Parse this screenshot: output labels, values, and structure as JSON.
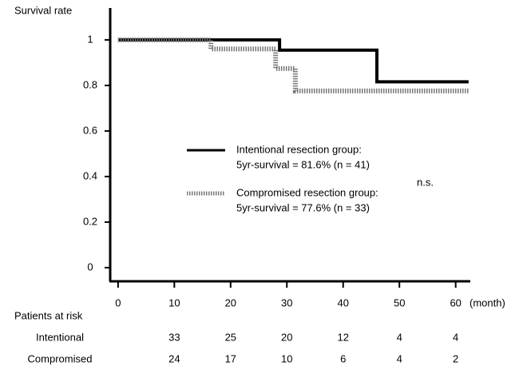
{
  "chart_data": {
    "type": "step",
    "y_label": "Survival rate",
    "x_unit": "(month)",
    "xlim": [
      -1.4,
      62.6
    ],
    "xticks": [
      0,
      10,
      20,
      30,
      40,
      50,
      60
    ],
    "ylim": [
      -0.06,
      1.14
    ],
    "yticks": [
      0,
      0.2,
      0.4,
      0.6,
      0.8,
      1
    ],
    "series": [
      {
        "name": "Intentional resection group:",
        "note": "5yr-survival = 81.6% (n = 41)",
        "color": "#000000",
        "dash": "solid",
        "x": [
          0,
          28.7,
          46,
          62.3
        ],
        "values": [
          1,
          0.955,
          0.816,
          0.816
        ]
      },
      {
        "name": "Compromised resection group:",
        "note": "5yr-survival = 77.6% (n = 33)",
        "color": "#777777",
        "dash": "dashed",
        "x": [
          0,
          16.5,
          28,
          31.5,
          62.3
        ],
        "values": [
          1,
          0.96,
          0.874,
          0.776,
          0.776
        ]
      }
    ],
    "annotation": "n.s.",
    "risk_table": {
      "title": "Patients at risk",
      "x": [
        10,
        20,
        30,
        40,
        50,
        60
      ],
      "rows": [
        {
          "label": "Intentional",
          "values": [
            33,
            25,
            20,
            12,
            4,
            4
          ]
        },
        {
          "label": "Compromised",
          "values": [
            24,
            17,
            10,
            6,
            4,
            2
          ]
        }
      ]
    }
  }
}
